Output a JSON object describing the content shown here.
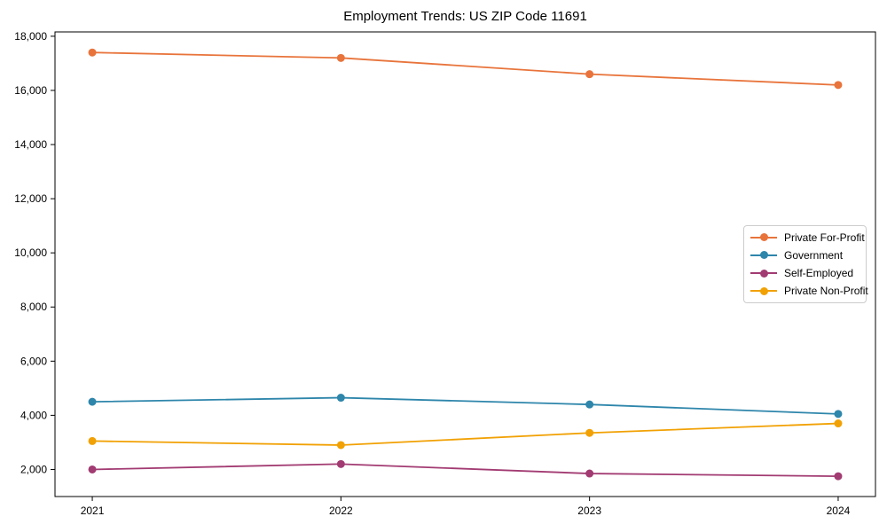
{
  "chart_data": {
    "type": "line",
    "title": "Employment Trends: US ZIP Code 11691",
    "x_tick_labels": [
      "2021",
      "2022",
      "2023",
      "2024"
    ],
    "x_values": [
      2021,
      2022,
      2023,
      2024
    ],
    "xlim": [
      2020.85,
      2024.15
    ],
    "ylim": [
      1000,
      18160
    ],
    "yticks": [
      2000,
      4000,
      6000,
      8000,
      10000,
      12000,
      14000,
      16000,
      18000
    ],
    "ytick_labels": [
      "2,000",
      "4,000",
      "6,000",
      "8,000",
      "10,000",
      "12,000",
      "14,000",
      "16,000",
      "18,000"
    ],
    "grid": false,
    "marker": "circle",
    "legend_position": "middle-right",
    "legend_border_color": "#cccccc",
    "axis_color": "#000000",
    "series": [
      {
        "name": "Private For-Profit",
        "color": "#E8743B",
        "values": [
          17400,
          17200,
          16600,
          16200
        ]
      },
      {
        "name": "Government",
        "color": "#2E86AB",
        "values": [
          4500,
          4650,
          4400,
          4050
        ]
      },
      {
        "name": "Self-Employed",
        "color": "#A23B72",
        "values": [
          2000,
          2200,
          1850,
          1750
        ]
      },
      {
        "name": "Private Non-Profit",
        "color": "#F1A104",
        "values": [
          3050,
          2900,
          3350,
          3700
        ]
      }
    ]
  }
}
